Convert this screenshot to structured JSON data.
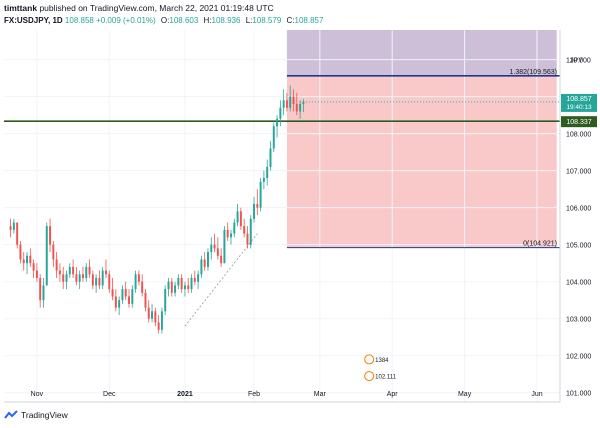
{
  "header": {
    "author": "timttank",
    "published_text": "published on TradingView.com, March 22, 2021 01:19:48 UTC",
    "symbol": "FX:USDJPY, 1D",
    "last": "108.858",
    "change": "+0.009 (+0.01%)",
    "open_label": "O:",
    "open": "108.603",
    "high_label": "H:",
    "high": "108.936",
    "low_label": "L:",
    "low": "108.579",
    "close_label": "C:",
    "close": "108.857"
  },
  "footer": {
    "brand": "TradingView"
  },
  "colors": {
    "up": "#26a69a",
    "down": "#ef5350",
    "zone_red": "#f9c9c9",
    "zone_purple": "#cdbfd7",
    "fib_line": "#1e3a8a",
    "support_line": "#2e5c1e"
  },
  "chart_data": {
    "type": "candlestick",
    "currency_label": "JPY",
    "ylim": [
      100.75,
      110.8
    ],
    "y_ticks": [
      "101.000",
      "102.000",
      "103.000",
      "104.000",
      "105.000",
      "106.000",
      "107.000",
      "108.000",
      "109.000",
      "110.000"
    ],
    "x_ticks": [
      {
        "label": "Nov",
        "x": 8
      },
      {
        "label": "Dec",
        "x": 30
      },
      {
        "label": "2021",
        "x": 53
      },
      {
        "label": "Feb",
        "x": 74
      },
      {
        "label": "Mar",
        "x": 94
      },
      {
        "label": "Apr",
        "x": 116
      },
      {
        "label": "May",
        "x": 138
      },
      {
        "label": "Jun",
        "x": 160
      }
    ],
    "x_range": [
      -2,
      167
    ],
    "last_price": {
      "label": "108.857",
      "countdown": "19:40:13",
      "value": 108.857
    },
    "horizontal_line": {
      "label": "108.337",
      "value": 108.337
    },
    "fib_levels": [
      {
        "label": "1.382(109.563)",
        "value": 109.563
      },
      {
        "label": "0(104.921)",
        "value": 104.921
      }
    ],
    "fib_zone": {
      "x_start": 84,
      "x_end": 166,
      "top": 110.8,
      "mid": 109.563,
      "bottom": 104.921
    },
    "trend_line": {
      "x1": 53,
      "y1": 102.8,
      "x2": 75,
      "y2": 105.3
    },
    "annotations": [
      {
        "label": "1384",
        "x": 109,
        "value": 101.9
      },
      {
        "label": "102.111",
        "x": 109,
        "value": 101.45
      }
    ],
    "candles_ohlc": [
      [
        105.5,
        105.7,
        105.2,
        105.4
      ],
      [
        105.4,
        105.7,
        105.3,
        105.6
      ],
      [
        105.6,
        105.6,
        104.9,
        105.0
      ],
      [
        105.0,
        105.1,
        104.5,
        104.6
      ],
      [
        104.6,
        104.8,
        104.3,
        104.5
      ],
      [
        104.5,
        104.8,
        104.2,
        104.7
      ],
      [
        104.7,
        104.9,
        104.4,
        104.5
      ],
      [
        104.5,
        104.6,
        104.1,
        104.3
      ],
      [
        104.3,
        104.5,
        104.0,
        104.1
      ],
      [
        104.1,
        104.2,
        103.3,
        103.5
      ],
      [
        103.5,
        104.1,
        103.3,
        103.9
      ],
      [
        103.9,
        105.6,
        103.9,
        105.5
      ],
      [
        105.5,
        105.7,
        104.8,
        105.0
      ],
      [
        105.0,
        105.1,
        104.4,
        104.6
      ],
      [
        104.6,
        104.8,
        104.1,
        104.3
      ],
      [
        104.3,
        104.5,
        104.0,
        104.2
      ],
      [
        104.2,
        104.4,
        103.8,
        104.0
      ],
      [
        104.0,
        104.3,
        103.8,
        104.2
      ],
      [
        104.2,
        104.5,
        104.1,
        104.4
      ],
      [
        104.4,
        104.6,
        104.1,
        104.2
      ],
      [
        104.2,
        104.4,
        103.9,
        104.0
      ],
      [
        104.0,
        104.3,
        103.8,
        104.2
      ],
      [
        104.2,
        104.4,
        104.0,
        104.1
      ],
      [
        104.1,
        104.5,
        104.0,
        104.4
      ],
      [
        104.4,
        104.6,
        104.1,
        104.2
      ],
      [
        104.2,
        104.3,
        103.8,
        103.9
      ],
      [
        103.9,
        104.2,
        103.7,
        104.1
      ],
      [
        104.1,
        104.3,
        103.8,
        103.9
      ],
      [
        103.9,
        104.4,
        103.8,
        104.3
      ],
      [
        104.3,
        104.6,
        104.1,
        104.2
      ],
      [
        104.2,
        104.3,
        103.7,
        103.8
      ],
      [
        103.8,
        104.1,
        103.5,
        103.6
      ],
      [
        103.6,
        103.8,
        103.2,
        103.3
      ],
      [
        103.3,
        103.6,
        103.1,
        103.5
      ],
      [
        103.5,
        103.9,
        103.4,
        103.8
      ],
      [
        103.8,
        104.0,
        103.5,
        103.6
      ],
      [
        103.6,
        103.8,
        103.3,
        103.4
      ],
      [
        103.4,
        103.9,
        103.3,
        103.8
      ],
      [
        103.8,
        104.3,
        103.7,
        104.2
      ],
      [
        104.2,
        104.3,
        103.9,
        104.0
      ],
      [
        104.0,
        104.2,
        103.6,
        103.7
      ],
      [
        103.7,
        103.8,
        103.2,
        103.3
      ],
      [
        103.3,
        103.5,
        102.9,
        103.0
      ],
      [
        103.0,
        103.4,
        102.9,
        103.2
      ],
      [
        103.2,
        103.3,
        102.8,
        102.9
      ],
      [
        102.9,
        103.1,
        102.6,
        102.7
      ],
      [
        102.7,
        103.3,
        102.6,
        103.2
      ],
      [
        103.2,
        103.9,
        103.1,
        103.8
      ],
      [
        103.8,
        104.1,
        103.6,
        104.0
      ],
      [
        104.0,
        104.1,
        103.6,
        103.7
      ],
      [
        103.7,
        104.0,
        103.6,
        103.9
      ],
      [
        103.9,
        104.2,
        103.8,
        104.1
      ],
      [
        104.1,
        104.2,
        103.7,
        103.8
      ],
      [
        103.8,
        104.0,
        103.6,
        103.9
      ],
      [
        103.9,
        104.1,
        103.7,
        103.8
      ],
      [
        103.8,
        104.2,
        103.7,
        104.1
      ],
      [
        104.1,
        104.3,
        103.9,
        104.0
      ],
      [
        104.0,
        104.3,
        103.8,
        104.2
      ],
      [
        104.2,
        104.7,
        104.1,
        104.6
      ],
      [
        104.6,
        104.8,
        104.3,
        104.4
      ],
      [
        104.4,
        104.9,
        104.3,
        104.8
      ],
      [
        104.8,
        105.2,
        104.6,
        105.0
      ],
      [
        105.0,
        105.3,
        104.8,
        104.9
      ],
      [
        104.9,
        105.2,
        104.6,
        104.7
      ],
      [
        104.7,
        104.9,
        104.4,
        104.5
      ],
      [
        104.5,
        105.5,
        104.5,
        105.4
      ],
      [
        105.4,
        105.6,
        105.1,
        105.2
      ],
      [
        105.2,
        105.4,
        105.0,
        105.3
      ],
      [
        105.3,
        105.7,
        105.2,
        105.6
      ],
      [
        105.6,
        106.1,
        105.5,
        105.9
      ],
      [
        105.9,
        106.0,
        105.4,
        105.5
      ],
      [
        105.5,
        105.7,
        105.2,
        105.3
      ],
      [
        105.3,
        105.5,
        104.9,
        105.0
      ],
      [
        105.0,
        105.8,
        104.9,
        105.7
      ],
      [
        105.7,
        106.3,
        105.6,
        106.1
      ],
      [
        106.1,
        106.5,
        105.8,
        106.0
      ],
      [
        106.0,
        106.8,
        105.9,
        106.7
      ],
      [
        106.7,
        107.0,
        106.5,
        106.8
      ],
      [
        106.8,
        107.3,
        106.6,
        107.1
      ],
      [
        107.1,
        107.8,
        107.0,
        107.6
      ],
      [
        107.6,
        108.3,
        107.5,
        108.2
      ],
      [
        108.2,
        108.5,
        107.9,
        108.4
      ],
      [
        108.4,
        108.9,
        108.2,
        108.7
      ],
      [
        108.7,
        109.2,
        108.5,
        108.9
      ],
      [
        108.9,
        109.1,
        108.6,
        108.7
      ],
      [
        108.7,
        109.3,
        108.6,
        109.0
      ],
      [
        109.0,
        109.2,
        108.6,
        108.8
      ],
      [
        108.8,
        109.1,
        108.5,
        108.6
      ],
      [
        108.6,
        108.9,
        108.4,
        108.8
      ],
      [
        108.8,
        108.94,
        108.58,
        108.86
      ]
    ]
  }
}
